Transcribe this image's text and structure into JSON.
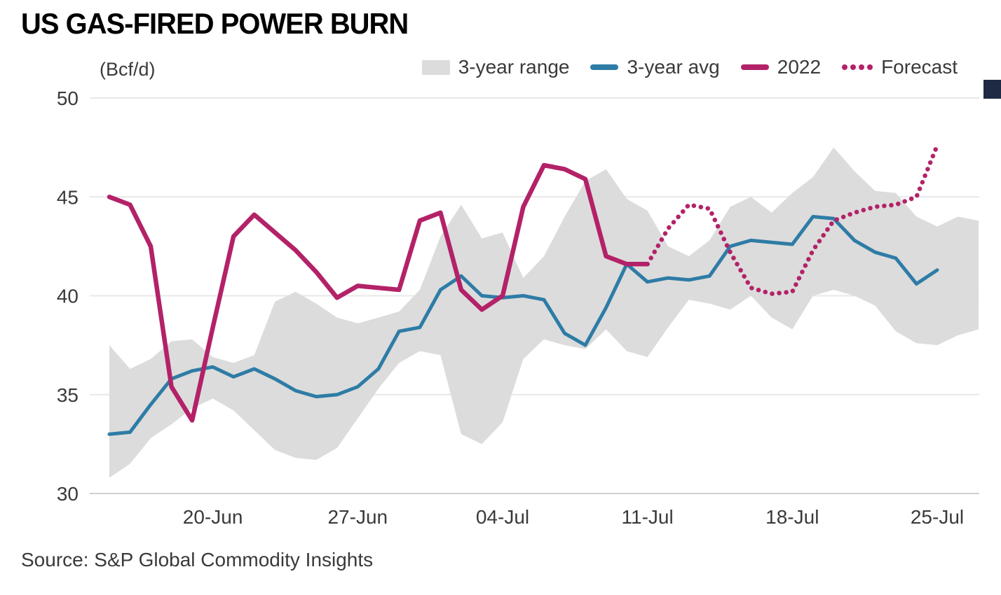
{
  "header": {
    "title": "US GAS-FIRED POWER BURN"
  },
  "footer": {
    "source": "Source: S&P Global Commodity Insights"
  },
  "brand": {
    "mark_color": "#1e2a44"
  },
  "chart_data": {
    "type": "line",
    "title": "US GAS-FIRED POWER BURN",
    "unit_label": "(Bcf/d)",
    "ylim": [
      30,
      50
    ],
    "yticks": [
      30,
      35,
      40,
      45,
      50
    ],
    "grid": "horizontal",
    "legend_position": "top",
    "xtick_dates": [
      "20-Jun",
      "27-Jun",
      "04-Jul",
      "11-Jul",
      "18-Jul",
      "25-Jul"
    ],
    "dates": [
      "15-Jun",
      "16-Jun",
      "17-Jun",
      "18-Jun",
      "19-Jun",
      "20-Jun",
      "21-Jun",
      "22-Jun",
      "23-Jun",
      "24-Jun",
      "25-Jun",
      "26-Jun",
      "27-Jun",
      "28-Jun",
      "29-Jun",
      "30-Jun",
      "01-Jul",
      "02-Jul",
      "03-Jul",
      "04-Jul",
      "05-Jul",
      "06-Jul",
      "07-Jul",
      "08-Jul",
      "09-Jul",
      "10-Jul",
      "11-Jul",
      "12-Jul",
      "13-Jul",
      "14-Jul",
      "15-Jul",
      "16-Jul",
      "17-Jul",
      "18-Jul",
      "19-Jul",
      "20-Jul",
      "21-Jul",
      "22-Jul",
      "23-Jul",
      "24-Jul",
      "25-Jul"
    ],
    "band_dates_extension": [
      "26-Jul",
      "27-Jul"
    ],
    "legend": [
      {
        "label": "3-year range",
        "swatch": "band",
        "color": "#dcdcdc"
      },
      {
        "label": "3-year avg",
        "swatch": "line",
        "color": "#2e7ca6"
      },
      {
        "label": "2022",
        "swatch": "line",
        "color": "#b32268"
      },
      {
        "label": "Forecast",
        "swatch": "dotted",
        "color": "#b32268"
      }
    ],
    "series": {
      "range": {
        "name": "3-year range",
        "color": "#dcdcdc",
        "start_date": "15-Jun",
        "low": [
          30.8,
          31.5,
          32.8,
          33.5,
          34.3,
          34.8,
          34.2,
          33.2,
          32.2,
          31.8,
          31.7,
          32.3,
          33.8,
          35.3,
          36.6,
          37.2,
          37.0,
          33.0,
          32.5,
          33.6,
          36.8,
          37.8,
          37.5,
          37.3,
          38.3,
          37.2,
          36.9,
          38.4,
          39.8,
          39.6,
          39.3,
          40.0,
          38.9,
          38.3,
          40.0,
          40.3,
          40.0,
          39.5,
          38.2,
          37.6,
          37.5,
          38.0,
          38.3
        ],
        "high": [
          37.5,
          36.3,
          36.8,
          37.7,
          37.8,
          36.9,
          36.6,
          37.0,
          39.7,
          40.2,
          39.6,
          38.9,
          38.6,
          38.9,
          39.2,
          40.3,
          43.0,
          44.6,
          42.9,
          43.2,
          40.9,
          42.0,
          44.0,
          45.8,
          46.4,
          44.9,
          44.3,
          42.5,
          42.0,
          42.8,
          44.5,
          45.0,
          44.2,
          45.2,
          46.0,
          47.5,
          46.3,
          45.3,
          45.2,
          44.0,
          43.5,
          44.0,
          43.8
        ]
      },
      "avg": {
        "name": "3-year avg",
        "color": "#2e7ca6",
        "start_date": "15-Jun",
        "values": [
          33.0,
          33.1,
          34.5,
          35.8,
          36.2,
          36.4,
          35.9,
          36.3,
          35.8,
          35.2,
          34.9,
          35.0,
          35.4,
          36.3,
          38.2,
          38.4,
          40.3,
          41.0,
          40.0,
          39.9,
          40.0,
          39.8,
          38.1,
          37.5,
          39.4,
          41.6,
          40.7,
          40.9,
          40.8,
          41.0,
          42.5,
          42.8,
          42.7,
          42.6,
          44.0,
          43.9,
          42.8,
          42.2,
          41.9,
          40.6,
          41.3
        ]
      },
      "y2022": {
        "name": "2022",
        "color": "#b32268",
        "start_date": "15-Jun",
        "values": [
          45.0,
          44.6,
          42.5,
          35.4,
          33.7,
          38.4,
          43.0,
          44.1,
          43.2,
          42.3,
          41.2,
          39.9,
          40.5,
          40.4,
          40.3,
          43.8,
          44.2,
          40.3,
          39.3,
          40.0,
          44.5,
          46.6,
          46.4,
          45.9,
          42.0,
          41.6,
          41.6
        ]
      },
      "forecast": {
        "name": "Forecast",
        "color": "#b32268",
        "style": "dotted",
        "start_date": "11-Jul",
        "values": [
          41.6,
          43.4,
          44.6,
          44.4,
          42.2,
          40.4,
          40.1,
          40.2,
          42.3,
          43.8,
          44.2,
          44.5,
          44.6,
          45.0,
          47.6
        ]
      }
    }
  }
}
